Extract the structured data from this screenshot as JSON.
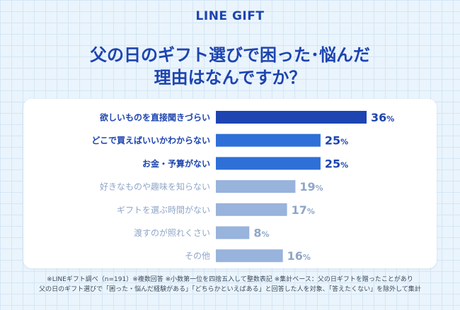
{
  "brand": "LINE GIFT",
  "title_lines": [
    "父の日のギフト選びで困った･悩んだ",
    "理由はなんですか？"
  ],
  "footnote_lines": [
    "※LINEギフト調べ（n=191）※複数回答 ※小数第一位を四捨五入して整数表記 ※集計ベース：父の日ギフトを贈ったことがあり",
    "父の日のギフト選びで「困った・悩んだ経験がある」「どちらかといえばある」と回答した人を対象、「答えたくない」を除外して集計"
  ],
  "colors": {
    "primary": "#1d44b0",
    "medium": "#2f6fd8",
    "light": "#98b3dc",
    "label_dark": "#1d44b0",
    "label_light": "#8fa6c8"
  },
  "chart_data": {
    "type": "bar",
    "orientation": "horizontal",
    "unit": "%",
    "categories": [
      "欲しいものを直接聞きづらい",
      "どこで買えばいいかわからない",
      "お金・予算がない",
      "好きなものや趣味を知らない",
      "ギフトを選ぶ時間がない",
      "渡すのが照れくさい",
      "その他"
    ],
    "values": [
      36,
      25,
      25,
      19,
      17,
      8,
      16
    ],
    "bar_colors": [
      "#1d44b0",
      "#2f6fd8",
      "#2f6fd8",
      "#98b3dc",
      "#98b3dc",
      "#98b3dc",
      "#98b3dc"
    ],
    "label_emphasis": [
      "dark",
      "dark",
      "dark",
      "light",
      "light",
      "light",
      "light"
    ],
    "xlim": [
      0,
      36
    ]
  }
}
